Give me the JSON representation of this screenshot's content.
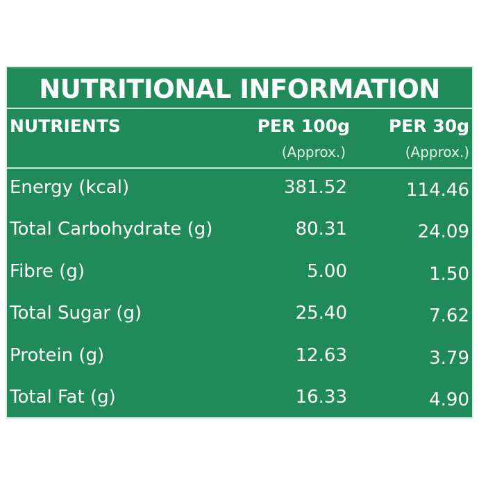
{
  "table": {
    "title": "NUTRITIONAL INFORMATION",
    "headers": {
      "nutrients": "NUTRIENTS",
      "per100": "PER 100g",
      "per100_note": "(Approx.)",
      "per30": "PER 30g",
      "per30_note": "(Approx.)"
    },
    "rows": [
      {
        "name": "Energy (kcal)",
        "per100": "381.52",
        "per30": "114.46"
      },
      {
        "name": "Total Carbohydrate (g)",
        "per100": "80.31",
        "per30": "24.09"
      },
      {
        "name": "Fibre (g)",
        "per100": "5.00",
        "per30": "1.50"
      },
      {
        "name": "Total Sugar (g)",
        "per100": "25.40",
        "per30": "7.62"
      },
      {
        "name": "Protein (g)",
        "per100": "12.63",
        "per30": "3.79"
      },
      {
        "name": "Total Fat (g)",
        "per100": "16.33",
        "per30": "4.90"
      }
    ]
  },
  "colors": {
    "background": "#208b58",
    "text": "#ffffff",
    "rule": "#cfe8da"
  }
}
